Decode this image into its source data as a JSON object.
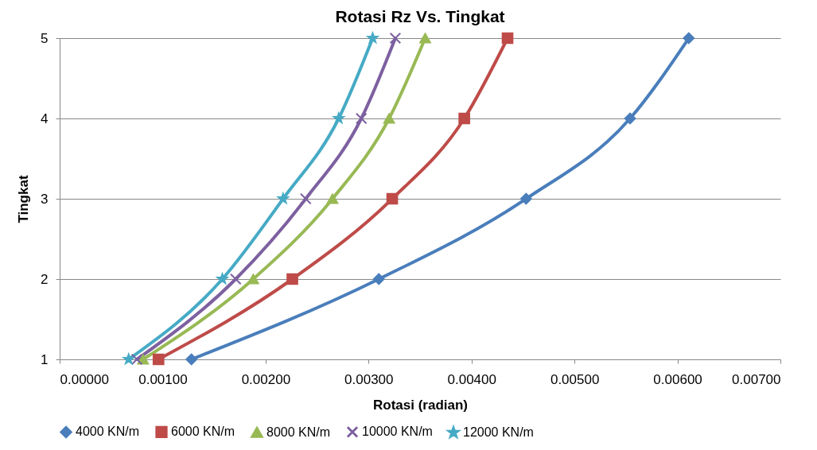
{
  "chart_data": {
    "type": "line",
    "title": "Rotasi Rz Vs. Tingkat",
    "xlabel": "Rotasi (radian)",
    "ylabel": "Tingkat",
    "xlim": [
      0,
      0.007
    ],
    "xticks": [
      {
        "value": 0,
        "label": "0.00000"
      },
      {
        "value": 0.001,
        "label": "0.00100"
      },
      {
        "value": 0.002,
        "label": "0.00200"
      },
      {
        "value": 0.003,
        "label": "0.00300"
      },
      {
        "value": 0.004,
        "label": "0.00400"
      },
      {
        "value": 0.005,
        "label": "0.00500"
      },
      {
        "value": 0.006,
        "label": "0.00600"
      },
      {
        "value": 0.007,
        "label": "0.00700"
      }
    ],
    "ylim": [
      1,
      5
    ],
    "yticks": [
      1,
      2,
      3,
      4,
      5
    ],
    "grid": "y",
    "legend": "bottom",
    "series": [
      {
        "name": "4000 KN/m",
        "color": "#4a7ebb",
        "marker": "diamond",
        "x": [
          0.00128,
          0.0031,
          0.00453,
          0.00554,
          0.00611
        ],
        "values": [
          1,
          2,
          3,
          4,
          5
        ]
      },
      {
        "name": "6000 KN/m",
        "color": "#be4b48",
        "marker": "square",
        "x": [
          0.00096,
          0.00226,
          0.00323,
          0.00393,
          0.00435
        ],
        "values": [
          1,
          2,
          3,
          4,
          5
        ]
      },
      {
        "name": "8000 KN/m",
        "color": "#98b954",
        "marker": "triangle",
        "x": [
          0.00081,
          0.00188,
          0.00265,
          0.0032,
          0.00355
        ],
        "values": [
          1,
          2,
          3,
          4,
          5
        ]
      },
      {
        "name": "10000 KN/m",
        "color": "#7d60a0",
        "marker": "cross",
        "x": [
          0.00075,
          0.00171,
          0.00239,
          0.00293,
          0.00326
        ],
        "values": [
          1,
          2,
          3,
          4,
          5
        ]
      },
      {
        "name": "12000 KN/m",
        "color": "#46aac5",
        "marker": "star",
        "x": [
          0.00067,
          0.00158,
          0.00217,
          0.00271,
          0.00304
        ],
        "values": [
          1,
          2,
          3,
          4,
          5
        ]
      }
    ]
  }
}
